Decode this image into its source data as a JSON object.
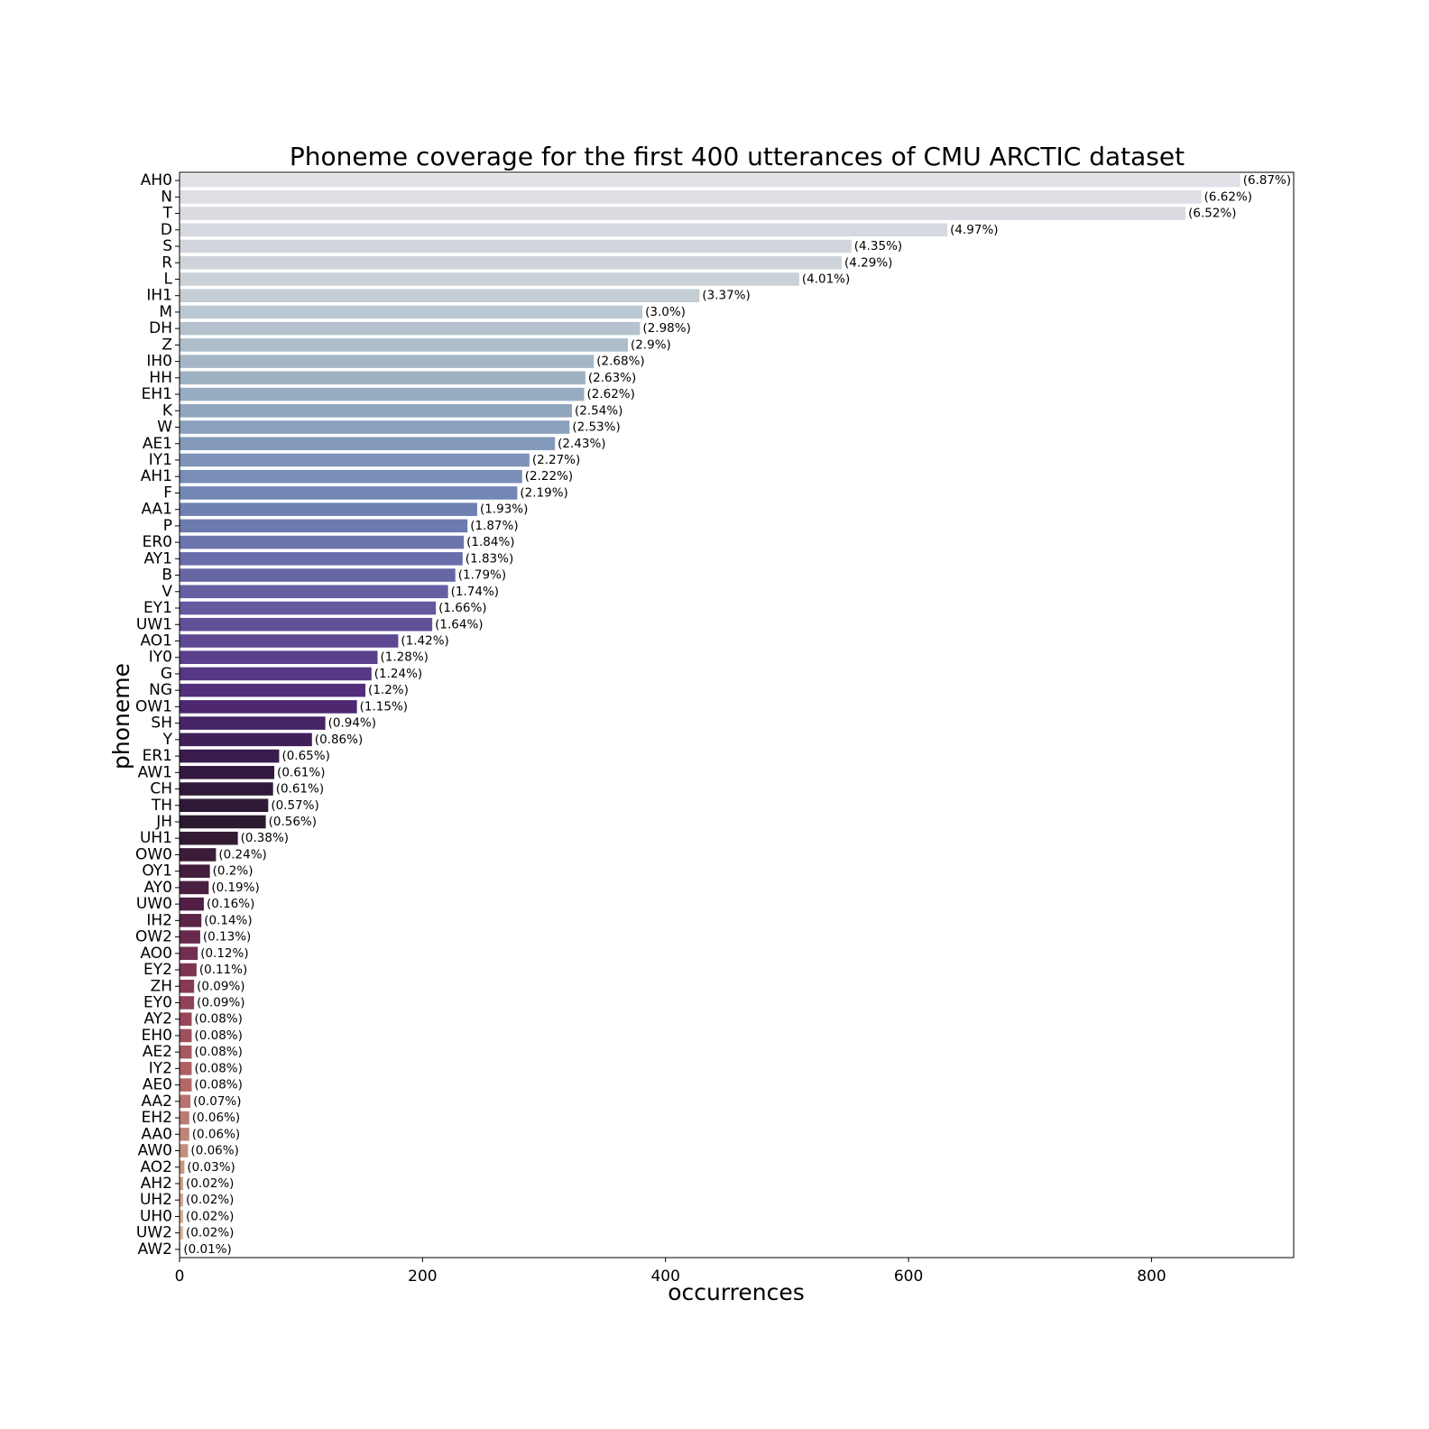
{
  "chart_data": {
    "type": "bar",
    "orientation": "horizontal",
    "title": "Phoneme coverage for the first 400 utterances of CMU ARCTIC dataset",
    "xlabel": "occurrences",
    "ylabel": "phoneme",
    "xlim": [
      0,
      917
    ],
    "xticks": [
      0,
      200,
      400,
      600,
      800
    ],
    "grid": false,
    "legend": "none",
    "color_scale": "cubehelix (light grey-blue → purple → dark → rose → light tan)",
    "categories": [
      "AH0",
      "N",
      "T",
      "D",
      "S",
      "R",
      "L",
      "IH1",
      "M",
      "DH",
      "Z",
      "IH0",
      "HH",
      "EH1",
      "K",
      "W",
      "AE1",
      "IY1",
      "AH1",
      "F",
      "AA1",
      "P",
      "ER0",
      "AY1",
      "B",
      "V",
      "EY1",
      "UW1",
      "AO1",
      "IY0",
      "G",
      "NG",
      "OW1",
      "SH",
      "Y",
      "ER1",
      "AW1",
      "CH",
      "TH",
      "JH",
      "UH1",
      "OW0",
      "OY1",
      "AY0",
      "UW0",
      "IH2",
      "OW2",
      "AO0",
      "EY2",
      "ZH",
      "EY0",
      "AY2",
      "EH0",
      "AE2",
      "IY2",
      "AE0",
      "AA2",
      "EH2",
      "AA0",
      "AW0",
      "AO2",
      "AH2",
      "UH2",
      "UH0",
      "UW2",
      "AW2"
    ],
    "values": [
      873,
      841,
      828,
      632,
      553,
      545,
      510,
      428,
      381,
      379,
      369,
      341,
      334,
      333,
      323,
      321,
      309,
      288,
      282,
      278,
      245,
      237,
      234,
      233,
      227,
      221,
      211,
      208,
      180,
      163,
      158,
      153,
      146,
      120,
      109,
      82,
      78,
      77,
      73,
      71,
      48,
      30,
      25,
      24,
      20,
      18,
      17,
      15,
      14,
      12,
      12,
      10,
      10,
      10,
      10,
      10,
      9,
      8,
      8,
      7,
      4,
      3,
      3,
      3,
      3,
      1
    ],
    "labels": [
      "(6.87%)",
      "(6.62%)",
      "(6.52%)",
      "(4.97%)",
      "(4.35%)",
      "(4.29%)",
      "(4.01%)",
      "(3.37%)",
      "(3.0%)",
      "(2.98%)",
      "(2.9%)",
      "(2.68%)",
      "(2.63%)",
      "(2.62%)",
      "(2.54%)",
      "(2.53%)",
      "(2.43%)",
      "(2.27%)",
      "(2.22%)",
      "(2.19%)",
      "(1.93%)",
      "(1.87%)",
      "(1.84%)",
      "(1.83%)",
      "(1.79%)",
      "(1.74%)",
      "(1.66%)",
      "(1.64%)",
      "(1.42%)",
      "(1.28%)",
      "(1.24%)",
      "(1.2%)",
      "(1.15%)",
      "(0.94%)",
      "(0.86%)",
      "(0.65%)",
      "(0.61%)",
      "(0.61%)",
      "(0.57%)",
      "(0.56%)",
      "(0.38%)",
      "(0.24%)",
      "(0.2%)",
      "(0.19%)",
      "(0.16%)",
      "(0.14%)",
      "(0.13%)",
      "(0.12%)",
      "(0.11%)",
      "(0.09%)",
      "(0.09%)",
      "(0.08%)",
      "(0.08%)",
      "(0.08%)",
      "(0.08%)",
      "(0.08%)",
      "(0.07%)",
      "(0.06%)",
      "(0.06%)",
      "(0.06%)",
      "(0.03%)",
      "(0.02%)",
      "(0.02%)",
      "(0.02%)",
      "(0.02%)",
      "(0.01%)"
    ]
  }
}
